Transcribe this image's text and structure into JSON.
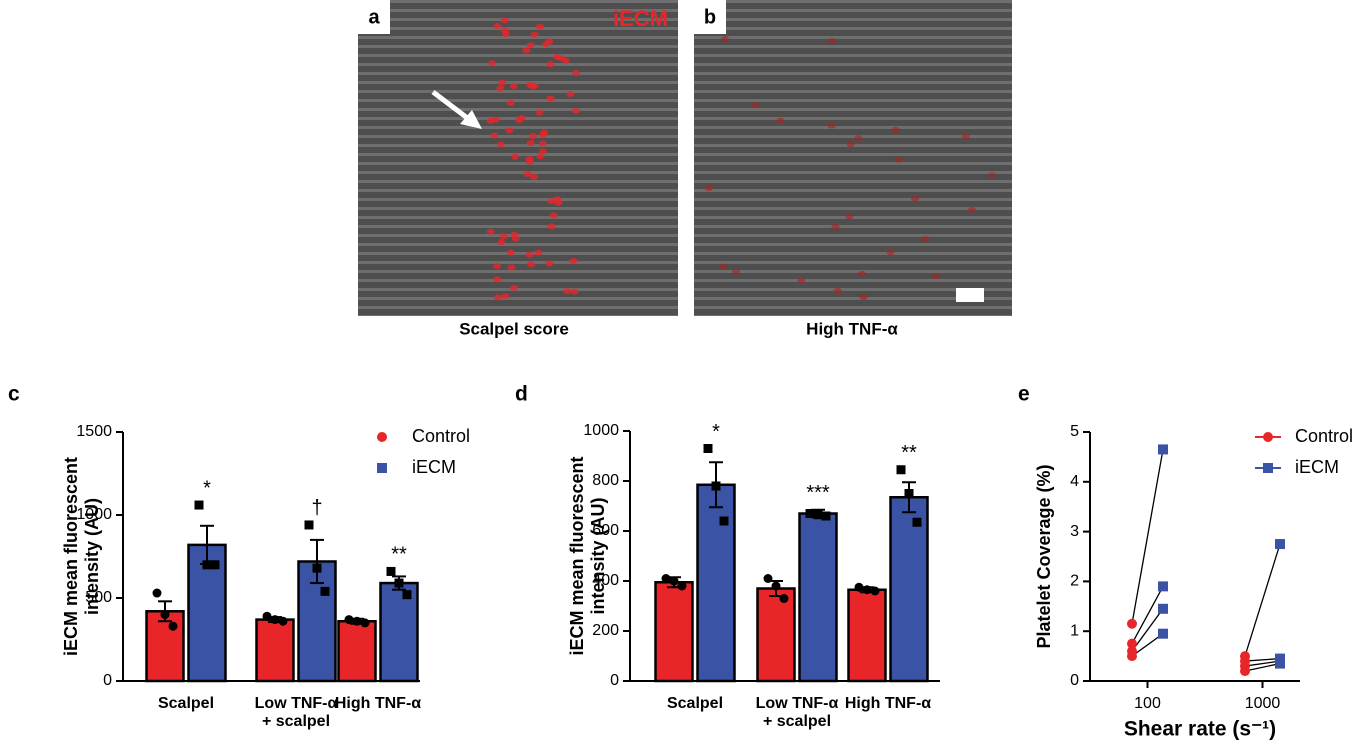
{
  "panels": [
    {
      "label": "a",
      "overlay": "iECM",
      "caption": "Scalpel score"
    },
    {
      "label": "b",
      "caption": "High TNF-α"
    }
  ],
  "chart_data": [
    {
      "type": "bar",
      "panel": "c",
      "ylabel": "iECM mean fluorescent\nintensity (AU)",
      "categories": [
        "Scalpel",
        "Low TNF-α\n+ scalpel",
        "High TNF-α"
      ],
      "ylim": [
        0,
        1500
      ],
      "yticks": [
        0,
        500,
        1000,
        1500
      ],
      "legend": "upper right",
      "series": [
        {
          "name": "Control",
          "color": "#e8262a",
          "marker": "circle",
          "values": [
            420,
            370,
            360
          ],
          "errors": [
            60,
            15,
            15
          ],
          "points": [
            [
              530,
              400,
              330
            ],
            [
              390,
              370,
              360
            ],
            [
              370,
              360,
              350
            ]
          ]
        },
        {
          "name": "iECM",
          "color": "#3a53a4",
          "marker": "square",
          "values": [
            820,
            720,
            590
          ],
          "errors": [
            115,
            130,
            40
          ],
          "points": [
            [
              1060,
              700,
              700
            ],
            [
              940,
              680,
              540
            ],
            [
              660,
              590,
              520
            ]
          ],
          "annotations": [
            "*",
            "†",
            "**"
          ]
        }
      ]
    },
    {
      "type": "bar",
      "panel": "d",
      "ylabel": "iECM mean fluorescent\nintensity (AU)",
      "categories": [
        "Scalpel",
        "Low TNF-α\n+ scalpel",
        "High TNF-α"
      ],
      "ylim": [
        0,
        1000
      ],
      "yticks": [
        0,
        200,
        400,
        600,
        800,
        1000
      ],
      "series": [
        {
          "name": "Control",
          "color": "#e8262a",
          "marker": "circle",
          "values": [
            395,
            370,
            365
          ],
          "errors": [
            20,
            30,
            10
          ],
          "points": [
            [
              410,
              400,
              380
            ],
            [
              410,
              380,
              330
            ],
            [
              375,
              365,
              360
            ]
          ]
        },
        {
          "name": "iECM",
          "color": "#3a53a4",
          "marker": "square",
          "values": [
            785,
            670,
            735
          ],
          "errors": [
            90,
            15,
            60
          ],
          "points": [
            [
              930,
              780,
              640
            ],
            [
              670,
              665,
              660
            ],
            [
              845,
              750,
              635
            ]
          ],
          "annotations": [
            "*",
            "***",
            "**"
          ]
        }
      ]
    },
    {
      "type": "paired",
      "panel": "e",
      "ylabel": "Platelet Coverage (%)",
      "xlabel": "Shear rate  (s⁻¹)",
      "categories": [
        "100",
        "1000"
      ],
      "ylim": [
        0,
        5
      ],
      "yticks": [
        0,
        1,
        2,
        3,
        4,
        5
      ],
      "legend": "upper right",
      "series": [
        {
          "name": "Control",
          "color": "#e8262a",
          "marker": "circle",
          "values": [
            [
              1.15,
              0.75,
              0.6,
              0.5
            ],
            [
              0.5,
              0.4,
              0.3,
              0.2
            ]
          ]
        },
        {
          "name": "iECM",
          "color": "#3a53a4",
          "marker": "square",
          "values": [
            [
              4.65,
              1.9,
              1.45,
              0.95
            ],
            [
              2.75,
              0.45,
              0.4,
              0.35
            ]
          ]
        }
      ]
    }
  ]
}
